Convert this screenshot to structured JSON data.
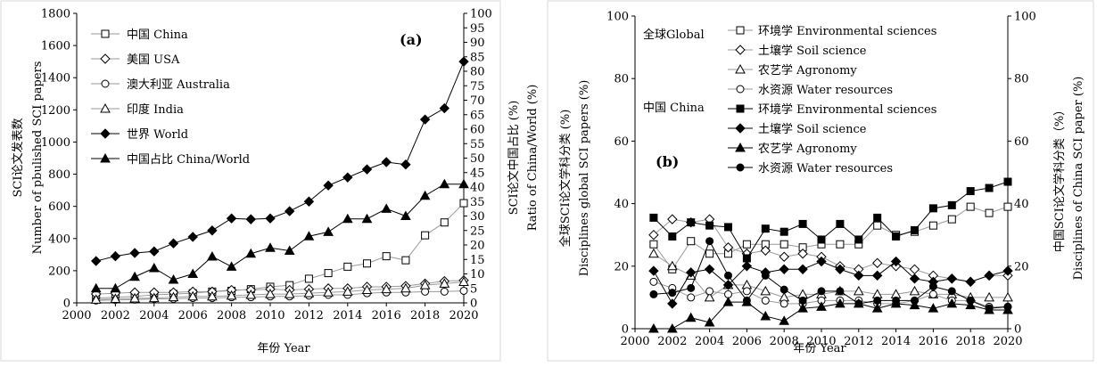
{
  "chart_data": [
    {
      "type": "line",
      "panel_label": "(a)",
      "xlabel": "年份 Year",
      "ylabel_zh": "SCI论文发表数",
      "ylabel_en": "Number of pbulished SCI papers",
      "y2label_zh": "SCI论文中国占比 (%)",
      "y2label_en": "Ratio of China/World (%)",
      "xlim": [
        2000,
        2020
      ],
      "ylim": [
        0,
        1800
      ],
      "y2lim": [
        0,
        100
      ],
      "x_ticks": [
        "2000",
        "2002",
        "2004",
        "2006",
        "2008",
        "2010",
        "2012",
        "2014",
        "2016",
        "2018",
        "2020"
      ],
      "y_ticks": [
        "0",
        "200",
        "400",
        "600",
        "800",
        "1000",
        "1200",
        "1400",
        "1600",
        "1800"
      ],
      "y2_ticks": [
        "0",
        "5",
        "10",
        "15",
        "20",
        "25",
        "30",
        "35",
        "40",
        "45",
        "50",
        "55",
        "60",
        "65",
        "70",
        "75",
        "80",
        "85",
        "90",
        "95",
        "100"
      ],
      "x": [
        2001,
        2002,
        2003,
        2004,
        2005,
        2006,
        2007,
        2008,
        2009,
        2010,
        2011,
        2012,
        2013,
        2014,
        2015,
        2016,
        2017,
        2018,
        2019,
        2020
      ],
      "series": [
        {
          "name": "中国 China",
          "marker": "square-open",
          "axis": "left",
          "values": [
            30,
            35,
            40,
            50,
            55,
            60,
            70,
            75,
            85,
            100,
            110,
            150,
            185,
            225,
            245,
            290,
            265,
            420,
            500,
            620
          ]
        },
        {
          "name": "美国 USA",
          "marker": "diamond-open",
          "axis": "left",
          "values": [
            55,
            60,
            65,
            65,
            65,
            70,
            70,
            80,
            80,
            85,
            80,
            85,
            90,
            90,
            100,
            100,
            105,
            120,
            135,
            140
          ]
        },
        {
          "name": "澳大利亚 Australia",
          "marker": "circle-open",
          "axis": "left",
          "values": [
            15,
            18,
            20,
            25,
            25,
            30,
            30,
            35,
            35,
            40,
            40,
            45,
            50,
            50,
            60,
            65,
            65,
            70,
            70,
            75
          ]
        },
        {
          "name": "印度 India",
          "marker": "triangle-open",
          "axis": "left",
          "values": [
            20,
            25,
            28,
            30,
            35,
            40,
            40,
            45,
            50,
            55,
            55,
            60,
            65,
            70,
            80,
            85,
            90,
            110,
            120,
            130
          ]
        },
        {
          "name": "世界 World",
          "marker": "diamond-filled",
          "axis": "left",
          "values": [
            260,
            290,
            310,
            320,
            370,
            410,
            450,
            525,
            520,
            525,
            570,
            630,
            730,
            780,
            830,
            875,
            860,
            1140,
            1210,
            1500
          ]
        },
        {
          "name": "中国占比 China/World",
          "marker": "triangle-filled",
          "axis": "right",
          "values": [
            5,
            5,
            9,
            12,
            8,
            10,
            16,
            12.5,
            17,
            19,
            18,
            23,
            24.5,
            29,
            29,
            32.5,
            30,
            37,
            41,
            41
          ]
        }
      ]
    },
    {
      "type": "line",
      "panel_label": "(b)",
      "xlabel": "年份 Year",
      "ylabel_zh": "全球SCI论文学科分类 (%)",
      "ylabel_en": "Disciplines global SCI papers (%)",
      "y2label_zh": "中国SCI论文学科分类（%）",
      "y2label_en": "Disciplines of China SCI paper (%)",
      "xlim": [
        2000,
        2020
      ],
      "ylim": [
        0,
        100
      ],
      "y2lim": [
        0,
        100
      ],
      "x_ticks": [
        "2000",
        "2002",
        "2004",
        "2006",
        "2008",
        "2010",
        "2012",
        "2014",
        "2016",
        "2018",
        "2020"
      ],
      "y_ticks": [
        "0",
        "20",
        "40",
        "60",
        "80",
        "100"
      ],
      "y2_ticks": [
        "0",
        "20",
        "40",
        "60",
        "80",
        "100"
      ],
      "legend_group_global": "全球Global",
      "legend_group_china": "中国 China",
      "x": [
        2001,
        2002,
        2003,
        2004,
        2005,
        2006,
        2007,
        2008,
        2009,
        2010,
        2011,
        2012,
        2013,
        2014,
        2015,
        2016,
        2017,
        2018,
        2019,
        2020
      ],
      "series": [
        {
          "name": "环境学 Environmental sciences",
          "group": "global",
          "marker": "square-open",
          "values": [
            27,
            19,
            28,
            24,
            24,
            27,
            27,
            27,
            26,
            27,
            27,
            27,
            33,
            30,
            31,
            33,
            35,
            39,
            37,
            39
          ]
        },
        {
          "name": "土壤学 Soil science",
          "group": "global",
          "marker": "diamond-open",
          "values": [
            30,
            35,
            34,
            35,
            26,
            24,
            25,
            23,
            24,
            23,
            20,
            19,
            21,
            20,
            19,
            17,
            16,
            15,
            17,
            17
          ]
        },
        {
          "name": "农艺学 Agronomy",
          "group": "global",
          "marker": "triangle-open",
          "values": [
            24,
            20,
            17,
            10,
            14,
            14,
            12,
            10,
            11,
            11,
            12,
            12,
            11,
            11,
            12,
            11,
            11,
            10,
            10,
            10
          ]
        },
        {
          "name": "水资源 Water resources",
          "group": "global",
          "marker": "circle-open",
          "values": [
            15,
            13,
            10,
            12,
            11,
            12,
            9,
            8,
            8,
            9,
            9,
            9,
            8,
            8,
            9,
            11,
            9,
            9,
            7,
            7
          ]
        },
        {
          "name": "环境学 Environmental sciences",
          "group": "china",
          "marker": "square-filled",
          "values": [
            35.5,
            29.5,
            34,
            33,
            32.5,
            22.5,
            32,
            31,
            33.5,
            28.5,
            33.5,
            28.5,
            35.5,
            29.5,
            31.5,
            38.5,
            39.5,
            44,
            45,
            47
          ]
        },
        {
          "name": "土壤学 Soil science",
          "group": "china",
          "marker": "diamond-filled",
          "values": [
            18.5,
            8,
            18,
            19,
            14,
            20,
            18,
            19,
            19,
            21.5,
            19,
            17,
            17,
            21.5,
            16,
            15,
            16,
            15,
            17,
            18.5
          ]
        },
        {
          "name": "农艺学 Agronomy",
          "group": "china",
          "marker": "triangle-filled",
          "values": [
            0,
            0,
            3.5,
            2,
            8.5,
            8.5,
            4,
            2.5,
            6.5,
            7,
            8,
            8,
            6.5,
            8,
            7.5,
            6.5,
            8,
            7.5,
            6,
            6
          ]
        },
        {
          "name": "水资源 Water resources",
          "group": "china",
          "marker": "circle-filled",
          "values": [
            11,
            11.5,
            13,
            28,
            17,
            9,
            17,
            12.5,
            9,
            12,
            12,
            8,
            9,
            9,
            9,
            13.5,
            12,
            9,
            6.5,
            7
          ]
        }
      ]
    }
  ]
}
